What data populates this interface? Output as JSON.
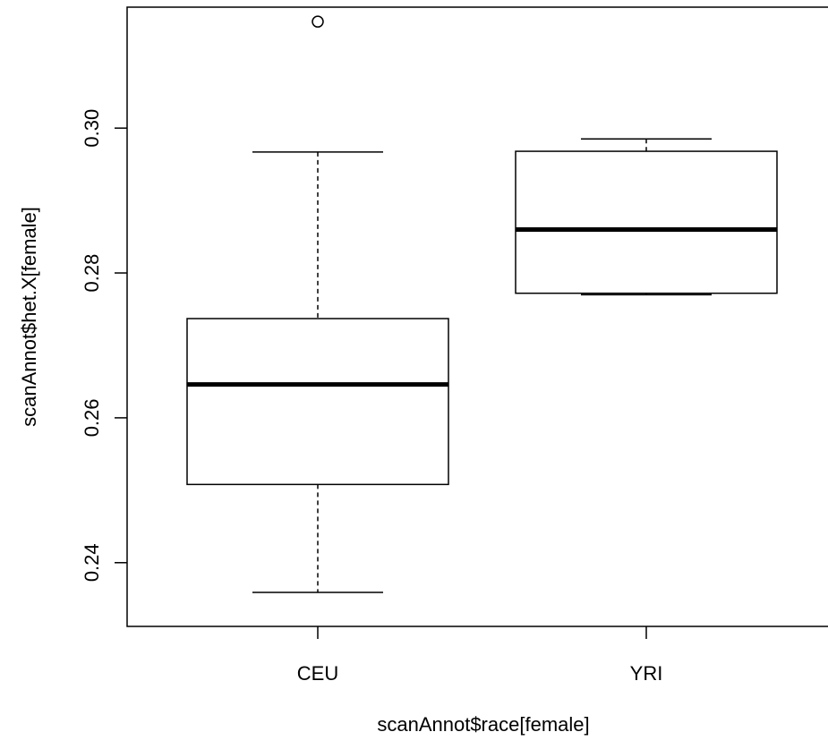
{
  "chart_data": {
    "type": "boxplot",
    "xlabel": "scanAnnot$race[female]",
    "ylabel": "scanAnnot$het.X[female]",
    "ylim": [
      0.2312,
      0.3167
    ],
    "yticks": [
      0.24,
      0.26,
      0.28,
      0.3
    ],
    "ytick_labels": [
      "0.24",
      "0.26",
      "0.28",
      "0.30"
    ],
    "categories": [
      "CEU",
      "YRI"
    ],
    "boxes": [
      {
        "category": "CEU",
        "whisker_low": 0.2359,
        "q1": 0.2508,
        "median": 0.2646,
        "q3": 0.2737,
        "whisker_high": 0.2967,
        "outliers": [
          0.3147
        ]
      },
      {
        "category": "YRI",
        "whisker_low": 0.277,
        "q1": 0.2772,
        "median": 0.286,
        "q3": 0.2968,
        "whisker_high": 0.2985,
        "outliers": []
      }
    ],
    "grid": false,
    "legend": "none"
  }
}
